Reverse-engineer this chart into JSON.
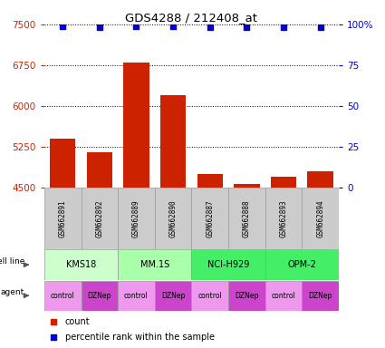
{
  "title": "GDS4288 / 212408_at",
  "samples": [
    "GSM662891",
    "GSM662892",
    "GSM662889",
    "GSM662890",
    "GSM662887",
    "GSM662888",
    "GSM662893",
    "GSM662894"
  ],
  "counts": [
    5400,
    5150,
    6800,
    6200,
    4750,
    4570,
    4700,
    4800
  ],
  "percentile_ranks": [
    99,
    98,
    99,
    99,
    98,
    98,
    98,
    98
  ],
  "cell_lines": [
    "KMS18",
    "KMS18",
    "MM.1S",
    "MM.1S",
    "NCI-H929",
    "NCI-H929",
    "OPM-2",
    "OPM-2"
  ],
  "agents": [
    "control",
    "DZNep",
    "control",
    "DZNep",
    "control",
    "DZNep",
    "control",
    "DZNep"
  ],
  "bar_color": "#CC2200",
  "dot_color": "#0000CC",
  "ylim_left": [
    4500,
    7500
  ],
  "ylim_right": [
    0,
    100
  ],
  "yticks_left": [
    4500,
    5250,
    6000,
    6750,
    7500
  ],
  "yticks_right": [
    0,
    25,
    50,
    75,
    100
  ],
  "left_axis_color": "#CC2200",
  "right_axis_color": "#0000CC",
  "cell_line_unique": [
    "KMS18",
    "MM.1S",
    "NCI-H929",
    "OPM-2"
  ],
  "cell_line_spans": [
    [
      0,
      1
    ],
    [
      2,
      3
    ],
    [
      4,
      5
    ],
    [
      6,
      7
    ]
  ],
  "cell_line_colors": {
    "KMS18": "#CCFFCC",
    "MM.1S": "#AAFFAA",
    "NCI-H929": "#44EE66",
    "OPM-2": "#44EE66"
  },
  "agent_colors": {
    "control": "#EE99EE",
    "DZNep": "#CC44CC"
  },
  "sample_bg": "#CCCCCC"
}
